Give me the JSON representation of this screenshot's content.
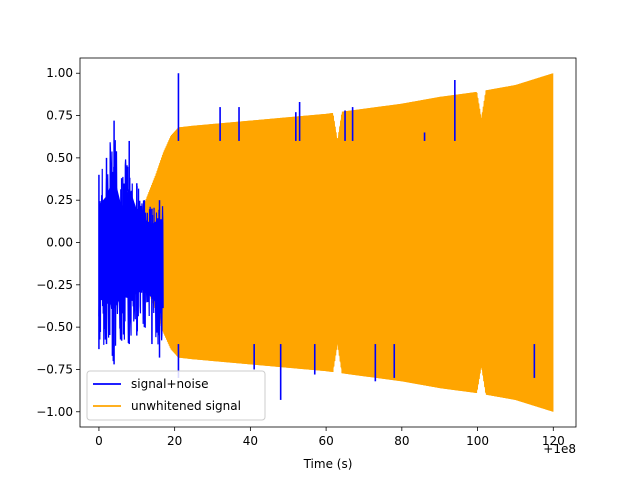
{
  "chart_data": {
    "type": "line",
    "title": "",
    "xlabel": "Time (s)",
    "ylabel": "",
    "x_offset_label": "+1e8",
    "xlim": [
      -5,
      126
    ],
    "ylim": [
      -1.09,
      1.09
    ],
    "x_ticks": [
      0,
      20,
      40,
      60,
      80,
      100,
      120
    ],
    "x_tick_labels": [
      "0",
      "20",
      "40",
      "60",
      "80",
      "100",
      "120"
    ],
    "y_ticks": [
      -1.0,
      -0.75,
      -0.5,
      -0.25,
      0.0,
      0.25,
      0.5,
      0.75,
      1.0
    ],
    "y_tick_labels": [
      "−1.00",
      "−0.75",
      "−0.50",
      "−0.25",
      "0.00",
      "0.25",
      "0.50",
      "0.75",
      "1.00"
    ],
    "grid": false,
    "legend_position": "lower-left",
    "series": [
      {
        "name": "signal+noise",
        "color": "#0000ff",
        "description": "dense oscillation; visible peaks listed",
        "envelope_upper": [
          [
            0,
            0.4
          ],
          [
            2,
            0.5
          ],
          [
            4,
            0.72
          ],
          [
            6,
            0.38
          ],
          [
            8,
            0.6
          ],
          [
            10,
            0.35
          ],
          [
            12,
            0.25
          ],
          [
            14,
            0.2
          ],
          [
            16,
            0.25
          ]
        ],
        "envelope_lower": [
          [
            0,
            -0.63
          ],
          [
            2,
            -0.6
          ],
          [
            4,
            -0.72
          ],
          [
            6,
            -0.58
          ],
          [
            8,
            -0.6
          ],
          [
            10,
            -0.55
          ],
          [
            12,
            -0.5
          ],
          [
            14,
            -0.6
          ],
          [
            16,
            -0.68
          ]
        ],
        "spikes": [
          [
            21,
            1.0
          ],
          [
            32,
            0.8
          ],
          [
            37,
            0.8
          ],
          [
            52,
            0.77
          ],
          [
            53,
            0.83
          ],
          [
            65,
            0.78
          ],
          [
            67,
            0.8
          ],
          [
            86,
            0.65
          ],
          [
            94,
            0.96
          ],
          [
            21,
            -0.8
          ],
          [
            41,
            -0.75
          ],
          [
            48,
            -0.93
          ],
          [
            57,
            -0.78
          ],
          [
            73,
            -0.82
          ],
          [
            78,
            -0.8
          ],
          [
            115,
            -0.8
          ]
        ]
      },
      {
        "name": "unwhitened signal",
        "color": "#ffa500",
        "description": "chirp whose amplitude grows from 0 to 1 over 0-120 s",
        "envelope": [
          [
            0,
            0.0
          ],
          [
            3,
            0.01
          ],
          [
            6,
            0.04
          ],
          [
            9,
            0.12
          ],
          [
            12,
            0.23
          ],
          [
            15,
            0.4
          ],
          [
            17,
            0.53
          ],
          [
            19,
            0.63
          ],
          [
            21,
            0.68
          ],
          [
            25,
            0.69
          ],
          [
            30,
            0.7
          ],
          [
            40,
            0.72
          ],
          [
            50,
            0.74
          ],
          [
            60,
            0.76
          ],
          [
            70,
            0.79
          ],
          [
            80,
            0.82
          ],
          [
            90,
            0.86
          ],
          [
            100,
            0.89
          ],
          [
            110,
            0.93
          ],
          [
            120,
            1.0
          ]
        ],
        "dips": [
          [
            63,
            0.6
          ],
          [
            101,
            0.73
          ]
        ]
      }
    ]
  }
}
